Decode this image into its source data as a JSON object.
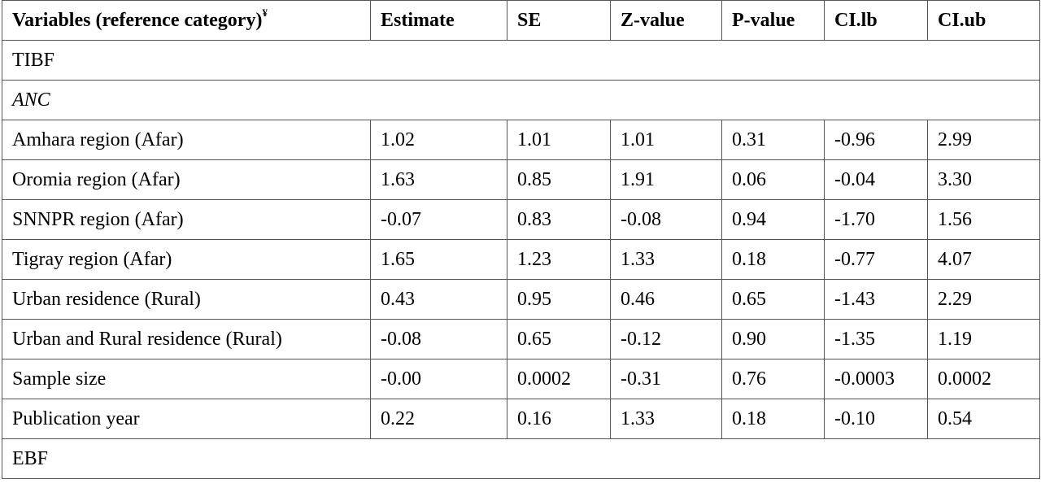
{
  "table": {
    "headers": {
      "variables": "Variables (reference category)",
      "variables_mark": "¥",
      "estimate": "Estimate",
      "se": "SE",
      "z": "Z-value",
      "p": "P-value",
      "cilb": "CI.lb",
      "ciub": "CI.ub"
    },
    "section_tibf": "TIBF",
    "subsection_anc": "ANC",
    "rows": [
      [
        "Amhara region (Afar)",
        "1.02",
        "1.01",
        "1.01",
        "0.31",
        "-0.96",
        "2.99"
      ],
      [
        "Oromia region (Afar)",
        "1.63",
        "0.85",
        "1.91",
        "0.06",
        "-0.04",
        "3.30"
      ],
      [
        "SNNPR region (Afar)",
        "-0.07",
        "0.83",
        "-0.08",
        "0.94",
        "-1.70",
        "1.56"
      ],
      [
        "Tigray region (Afar)",
        "1.65",
        "1.23",
        "1.33",
        "0.18",
        "-0.77",
        "4.07"
      ],
      [
        "Urban residence (Rural)",
        "0.43",
        "0.95",
        "0.46",
        "0.65",
        "-1.43",
        "2.29"
      ],
      [
        "Urban and Rural residence (Rural)",
        "-0.08",
        "0.65",
        "-0.12",
        "0.90",
        "-1.35",
        "1.19"
      ],
      [
        "Sample size",
        "-0.00",
        "0.0002",
        "-0.31",
        "0.76",
        "-0.0003",
        "0.0002"
      ],
      [
        "Publication year",
        "0.22",
        "0.16",
        "1.33",
        "0.18",
        "-0.10",
        "0.54"
      ]
    ],
    "section_ebf": "EBF"
  }
}
